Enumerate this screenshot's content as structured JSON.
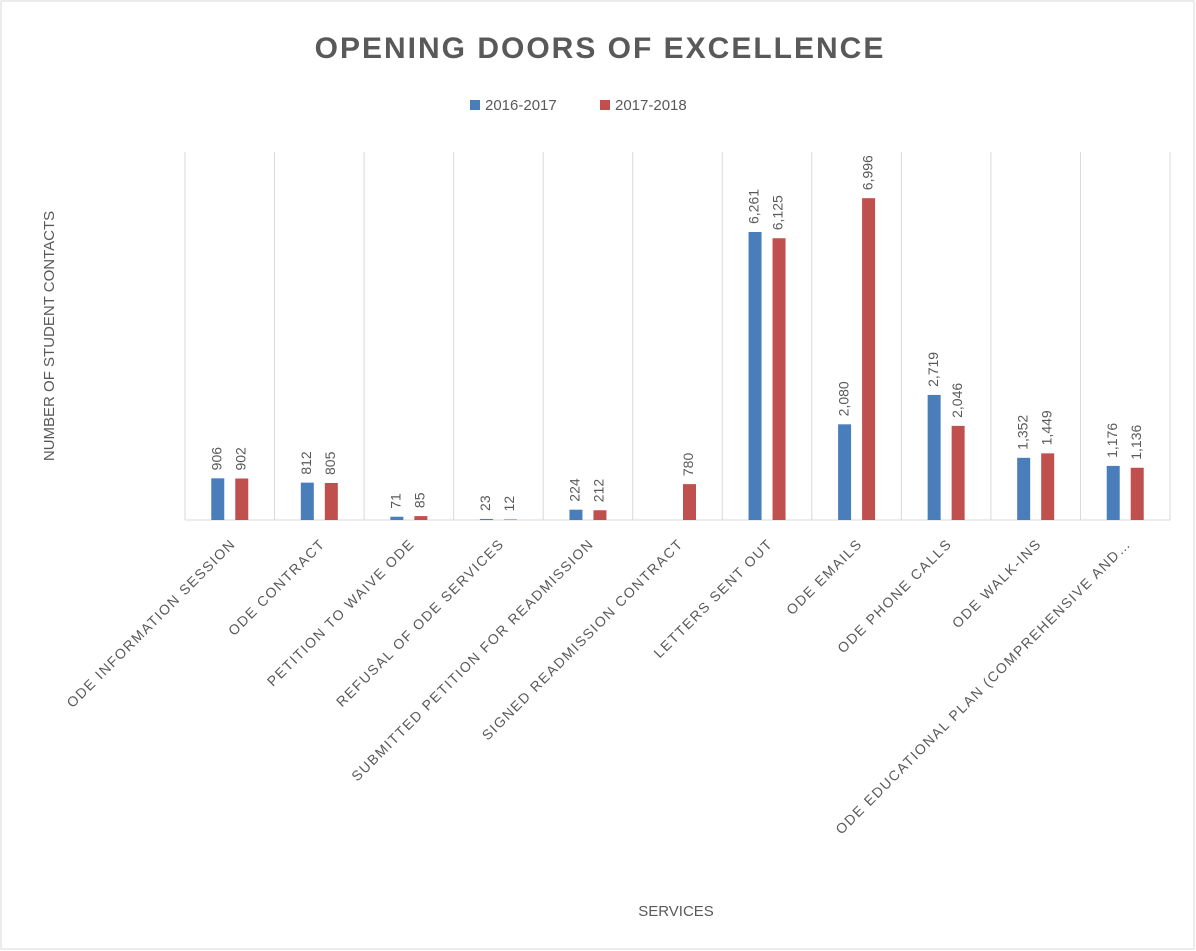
{
  "chart_data": {
    "type": "bar",
    "title": "OPENING DOORS OF EXCELLENCE",
    "x_label": "SERVICES",
    "y_label": "NUMBER OF STUDENT CONTACTS",
    "categories": [
      "ODE INFORMATION SESSION",
      "ODE CONTRACT",
      "PETITION TO WAIVE ODE",
      "REFUSAL OF ODE SERVICES",
      "SUBMITTED PETITION FOR READMISSION",
      "SIGNED READMISSION CONTRACT",
      "LETTERS SENT OUT",
      "ODE EMAILS",
      "ODE PHONE CALLS",
      "ODE WALK-INS",
      "ODE EDUCATIONAL PLAN (COMPREHENSIVE AND…"
    ],
    "series": [
      {
        "name": "2016-2017",
        "color": "#4a7ebb",
        "values": [
          906,
          812,
          71,
          23,
          224,
          null,
          6261,
          2080,
          2719,
          1352,
          1176
        ],
        "value_labels": [
          "906",
          "812",
          "71",
          "23",
          "224",
          null,
          "6,261",
          "2,080",
          "2,719",
          "1,352",
          "1,176"
        ]
      },
      {
        "name": "2017-2018",
        "color": "#c0504d",
        "values": [
          902,
          805,
          85,
          12,
          212,
          780,
          6125,
          6996,
          2046,
          1449,
          1136
        ],
        "value_labels": [
          "902",
          "805",
          "85",
          "12",
          "212",
          "780",
          "6,125",
          "6,996",
          "2,046",
          "1,449",
          "1,136"
        ]
      }
    ],
    "ylim": [
      0,
      8000
    ],
    "legend": "top"
  }
}
